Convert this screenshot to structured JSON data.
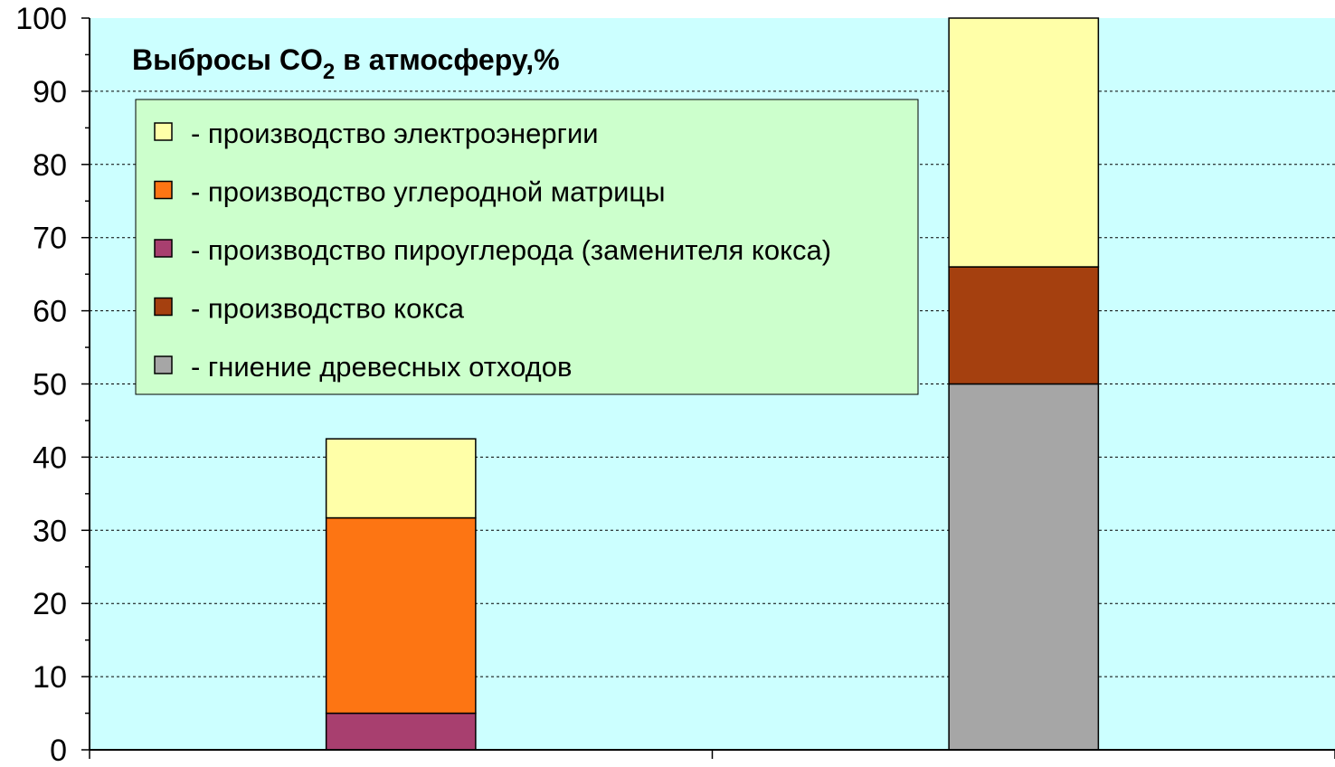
{
  "chart_data": {
    "type": "bar",
    "stacked": true,
    "title": {
      "prefix": "Выбросы CO",
      "subscript": "2",
      "suffix": " в атмосферу,%"
    },
    "xlabel": "",
    "ylabel": "",
    "ylim": [
      0,
      100
    ],
    "yticks": [
      "0",
      "10",
      "20",
      "30",
      "40",
      "50",
      "60",
      "70",
      "80",
      "90",
      "100"
    ],
    "categories": [
      "",
      ""
    ],
    "grid": true,
    "legend_position": "top-left",
    "series": [
      {
        "name": "- гниение древесных отходов",
        "color": "#a6a6a6",
        "values": [
          0,
          50
        ]
      },
      {
        "name": "- производство кокса",
        "color": "#a5400f",
        "values": [
          0,
          16
        ]
      },
      {
        "name": "- производство пироуглерода (заменителя кокса)",
        "color": "#a83f6f",
        "values": [
          5,
          0
        ]
      },
      {
        "name": "- производство углеродной матрицы",
        "color": "#fd7513",
        "values": [
          26.7,
          0
        ]
      },
      {
        "name": "- производство электроэнергии",
        "color": "#ffffa8",
        "values": [
          10.8,
          34
        ]
      }
    ],
    "legend_order": [
      4,
      3,
      2,
      1,
      0
    ],
    "colors": {
      "plot_background": "#ccffff",
      "legend_background": "#ccffcc",
      "grid": "#000000"
    }
  }
}
